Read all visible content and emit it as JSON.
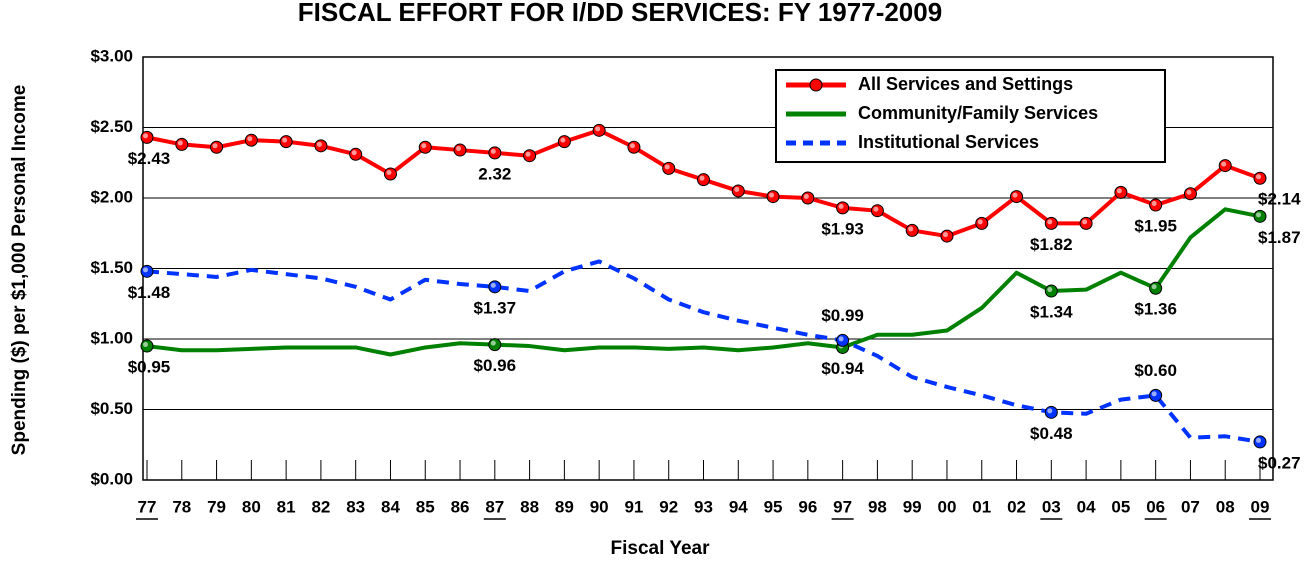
{
  "chart_data": {
    "type": "line",
    "title": "FISCAL EFFORT FOR I/DD SERVICES: FY 1977-2009",
    "x_label": "Fiscal Year",
    "y_label": "Spending ($) per $1,000 Personal Income",
    "categories": [
      "77",
      "78",
      "79",
      "80",
      "81",
      "82",
      "83",
      "84",
      "85",
      "86",
      "87",
      "88",
      "89",
      "90",
      "91",
      "92",
      "93",
      "94",
      "95",
      "96",
      "97",
      "98",
      "99",
      "00",
      "01",
      "02",
      "03",
      "04",
      "05",
      "06",
      "07",
      "08",
      "09"
    ],
    "ylim": [
      0,
      3
    ],
    "yticks": [
      {
        "value": 0,
        "label": "$0.00"
      },
      {
        "value": 0.5,
        "label": "$0.50"
      },
      {
        "value": 1,
        "label": "$1.00"
      },
      {
        "value": 1.5,
        "label": "$1.50"
      },
      {
        "value": 2,
        "label": "$2.00"
      },
      {
        "value": 2.5,
        "label": "$2.50"
      },
      {
        "value": 3,
        "label": "$3.00"
      }
    ],
    "grid": true,
    "legend": "top-right",
    "series": [
      {
        "name": "All Services and Settings",
        "color": "#ff0000",
        "marker": "circle",
        "dash": "solid",
        "values": [
          2.43,
          2.38,
          2.36,
          2.41,
          2.4,
          2.37,
          2.31,
          2.17,
          2.36,
          2.34,
          2.32,
          2.3,
          2.4,
          2.48,
          2.36,
          2.21,
          2.13,
          2.05,
          2.01,
          2.0,
          1.93,
          1.91,
          1.77,
          1.73,
          1.82,
          2.01,
          1.82,
          1.82,
          2.04,
          1.95,
          2.03,
          2.23,
          2.14
        ],
        "value_labels": [
          "$2.43",
          null,
          null,
          null,
          null,
          null,
          null,
          null,
          null,
          null,
          "2.32",
          null,
          null,
          null,
          null,
          null,
          null,
          null,
          null,
          null,
          "$1.93",
          null,
          null,
          null,
          null,
          null,
          "$1.82",
          null,
          null,
          "$1.95",
          null,
          null,
          "$2.14"
        ]
      },
      {
        "name": "Community/Family Services",
        "color": "#008000",
        "marker": "labeled",
        "dash": "solid",
        "values": [
          0.95,
          0.92,
          0.92,
          0.93,
          0.94,
          0.94,
          0.94,
          0.89,
          0.94,
          0.97,
          0.96,
          0.95,
          0.92,
          0.94,
          0.94,
          0.93,
          0.94,
          0.92,
          0.94,
          0.97,
          0.94,
          1.03,
          1.03,
          1.06,
          1.22,
          1.47,
          1.34,
          1.35,
          1.47,
          1.36,
          1.72,
          1.92,
          1.87
        ],
        "value_labels": [
          "$0.95",
          null,
          null,
          null,
          null,
          null,
          null,
          null,
          null,
          null,
          "$0.96",
          null,
          null,
          null,
          null,
          null,
          null,
          null,
          null,
          null,
          "$0.94",
          null,
          null,
          null,
          null,
          null,
          "$1.34",
          null,
          null,
          "$1.36",
          null,
          null,
          "$1.87"
        ]
      },
      {
        "name": "Institutional Services",
        "color": "#0033ff",
        "marker": "labeled",
        "dash": "dashed",
        "values": [
          1.48,
          1.46,
          1.44,
          1.49,
          1.46,
          1.43,
          1.37,
          1.28,
          1.42,
          1.39,
          1.37,
          1.34,
          1.48,
          1.55,
          1.43,
          1.28,
          1.19,
          1.13,
          1.08,
          1.03,
          0.99,
          0.88,
          0.73,
          0.66,
          0.6,
          0.53,
          0.48,
          0.47,
          0.57,
          0.6,
          0.3,
          0.31,
          0.27
        ],
        "value_labels": [
          "$1.48",
          null,
          null,
          null,
          null,
          null,
          null,
          null,
          null,
          null,
          "$1.37",
          null,
          null,
          null,
          null,
          null,
          null,
          null,
          null,
          null,
          "$0.99",
          null,
          null,
          null,
          null,
          null,
          "$0.48",
          null,
          null,
          "$0.60",
          null,
          null,
          "$0.27"
        ]
      }
    ]
  }
}
